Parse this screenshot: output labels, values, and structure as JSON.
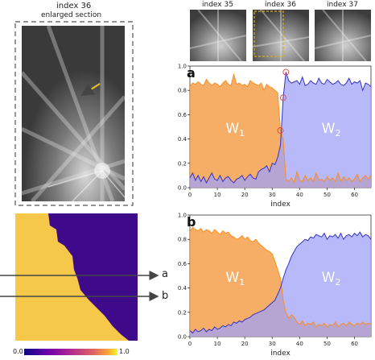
{
  "enlarged": {
    "title": "index 36",
    "subtitle": "enlarged section"
  },
  "thumbnails": [
    {
      "label": "index 35"
    },
    {
      "label": "index 36"
    },
    {
      "label": "index 37"
    }
  ],
  "map": {
    "colorbar_min": "0.0",
    "colorbar_max": "1.0",
    "arrow_labels": [
      "a",
      "b"
    ]
  },
  "colors": {
    "w1": "#f5a04c",
    "w1_line": "#ff8c1a",
    "w2": "#a0a2f5",
    "w2_line": "#3333cc",
    "overlap": "#8e6a8a",
    "marker": "#e05050",
    "dash_box": "#d4b020"
  },
  "chart_data": [
    {
      "type": "area",
      "panel": "a",
      "xlabel": "index",
      "ylabel": "",
      "xlim": [
        0,
        66
      ],
      "ylim": [
        0,
        1.0
      ],
      "xticks": [
        0,
        10,
        20,
        30,
        40,
        50,
        60
      ],
      "yticks": [
        0.0,
        0.2,
        0.4,
        0.6,
        0.8,
        1.0
      ],
      "region_labels": [
        "W",
        "W"
      ],
      "region_subscripts": [
        "1",
        "2"
      ],
      "highlighted_points": [
        {
          "x": 33,
          "y": 0.47
        },
        {
          "x": 34,
          "y": 0.74
        },
        {
          "x": 35,
          "y": 0.95
        }
      ],
      "series": [
        {
          "values": [
            0.83,
            0.86,
            0.85,
            0.87,
            0.85,
            0.84,
            0.89,
            0.86,
            0.84,
            0.86,
            0.85,
            0.83,
            0.86,
            0.88,
            0.85,
            0.84,
            0.93,
            0.85,
            0.86,
            0.84,
            0.85,
            0.83,
            0.88,
            0.86,
            0.85,
            0.84,
            0.86,
            0.8,
            0.85,
            0.83,
            0.82,
            0.8,
            0.78,
            0.47,
            0.4,
            0.07,
            0.05,
            0.08,
            0.04,
            0.13,
            0.06,
            0.05,
            0.1,
            0.06,
            0.08,
            0.05,
            0.12,
            0.06,
            0.07,
            0.05,
            0.09,
            0.06,
            0.08,
            0.05,
            0.12,
            0.05,
            0.09,
            0.06,
            0.08,
            0.05,
            0.07,
            0.11,
            0.05,
            0.08,
            0.1,
            0.07,
            0.1
          ]
        },
        {
          "values": [
            0.08,
            0.12,
            0.06,
            0.1,
            0.05,
            0.09,
            0.04,
            0.08,
            0.12,
            0.07,
            0.06,
            0.1,
            0.05,
            0.08,
            0.09,
            0.06,
            0.04,
            0.07,
            0.08,
            0.1,
            0.06,
            0.09,
            0.11,
            0.08,
            0.07,
            0.13,
            0.15,
            0.16,
            0.18,
            0.13,
            0.2,
            0.19,
            0.25,
            0.35,
            0.74,
            0.95,
            0.88,
            0.86,
            0.87,
            0.88,
            0.85,
            0.91,
            0.84,
            0.85,
            0.88,
            0.86,
            0.85,
            0.9,
            0.86,
            0.85,
            0.89,
            0.87,
            0.85,
            0.86,
            0.88,
            0.85,
            0.84,
            0.86,
            0.9,
            0.85,
            0.87,
            0.86,
            0.88,
            0.8,
            0.86,
            0.85,
            0.83
          ]
        }
      ]
    },
    {
      "type": "area",
      "panel": "b",
      "xlabel": "index",
      "ylabel": "",
      "xlim": [
        0,
        66
      ],
      "ylim": [
        0,
        1.0
      ],
      "xticks": [
        0,
        10,
        20,
        30,
        40,
        50,
        60
      ],
      "yticks": [
        0.0,
        0.2,
        0.4,
        0.6,
        0.8,
        1.0
      ],
      "region_labels": [
        "W",
        "W"
      ],
      "region_subscripts": [
        "1",
        "2"
      ],
      "series": [
        {
          "values": [
            0.86,
            0.9,
            0.88,
            0.87,
            0.89,
            0.86,
            0.88,
            0.87,
            0.85,
            0.88,
            0.86,
            0.84,
            0.87,
            0.85,
            0.86,
            0.83,
            0.82,
            0.8,
            0.81,
            0.83,
            0.8,
            0.82,
            0.79,
            0.78,
            0.8,
            0.77,
            0.75,
            0.73,
            0.71,
            0.7,
            0.68,
            0.62,
            0.55,
            0.48,
            0.3,
            0.2,
            0.15,
            0.18,
            0.16,
            0.12,
            0.1,
            0.13,
            0.09,
            0.11,
            0.1,
            0.12,
            0.08,
            0.1,
            0.09,
            0.11,
            0.08,
            0.1,
            0.09,
            0.12,
            0.08,
            0.1,
            0.11,
            0.09,
            0.12,
            0.1,
            0.09,
            0.11,
            0.1,
            0.12,
            0.1,
            0.11,
            0.1
          ]
        },
        {
          "values": [
            0.05,
            0.03,
            0.06,
            0.04,
            0.05,
            0.07,
            0.04,
            0.06,
            0.05,
            0.08,
            0.06,
            0.07,
            0.09,
            0.08,
            0.1,
            0.09,
            0.12,
            0.11,
            0.13,
            0.12,
            0.14,
            0.15,
            0.16,
            0.18,
            0.19,
            0.2,
            0.21,
            0.22,
            0.24,
            0.26,
            0.28,
            0.3,
            0.35,
            0.4,
            0.48,
            0.55,
            0.6,
            0.66,
            0.7,
            0.74,
            0.76,
            0.78,
            0.8,
            0.79,
            0.82,
            0.81,
            0.84,
            0.83,
            0.82,
            0.85,
            0.8,
            0.83,
            0.82,
            0.84,
            0.81,
            0.85,
            0.8,
            0.83,
            0.84,
            0.82,
            0.85,
            0.83,
            0.86,
            0.82,
            0.84,
            0.83,
            0.8
          ]
        }
      ]
    }
  ]
}
